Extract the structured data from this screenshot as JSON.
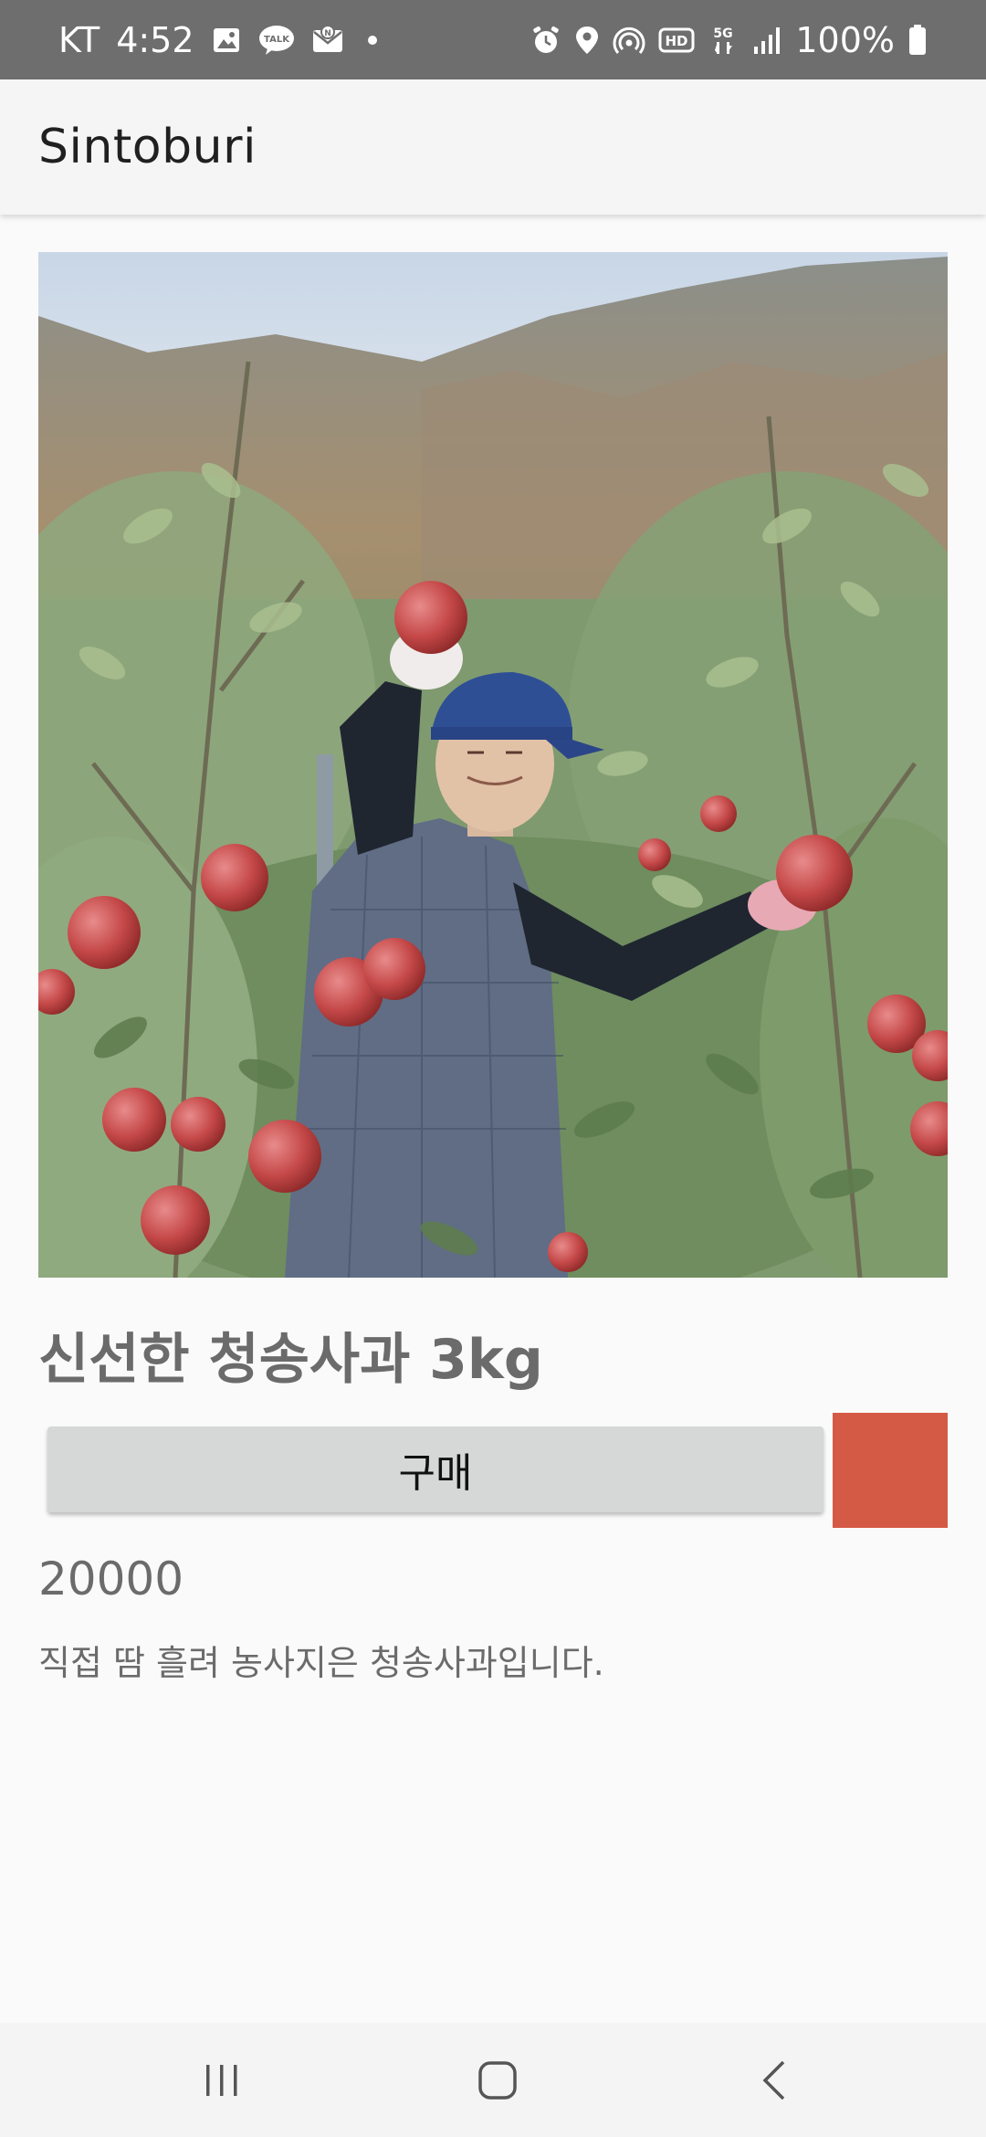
{
  "status_bar": {
    "carrier": "KT",
    "time": "4:52",
    "battery": "100%",
    "left_icons": [
      "gallery-icon",
      "kakaotalk-icon",
      "naver-mail-icon",
      "more-dot-icon"
    ],
    "right_icons": [
      "alarm-icon",
      "location-icon",
      "hotspot-icon",
      "hd-icon",
      "5g-icon",
      "signal-icon",
      "battery-icon"
    ]
  },
  "app_bar": {
    "title": "Sintoburi"
  },
  "product": {
    "name": "신선한 청송사과 3kg",
    "buy_label": "구매",
    "price": "20000",
    "description": "직접 땀 흘려 농사지은 청송사과입니다.",
    "swatch_color": "#d45a45"
  },
  "nav_bar": {
    "buttons": [
      "recent-apps-icon",
      "home-icon",
      "back-icon"
    ]
  }
}
